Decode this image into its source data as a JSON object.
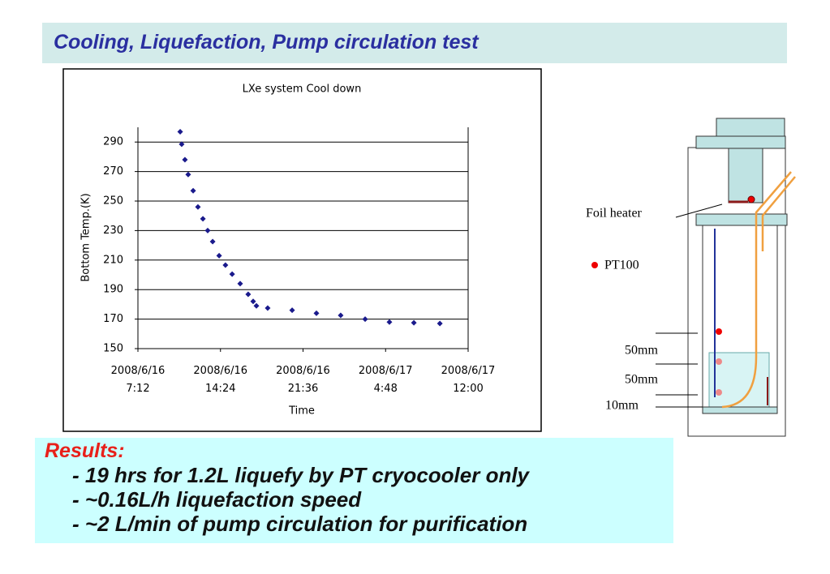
{
  "header": {
    "title": "Cooling, Liquefaction, Pump circulation test"
  },
  "chart_data": {
    "type": "scatter",
    "title": "LXe system Cool down",
    "xlabel": "Time",
    "ylabel": "Bottom Temp.(K)",
    "color": "#1a1a8c",
    "grid": true,
    "x": [
      "2008/6/16 10:53",
      "2008/6/16 11:01",
      "2008/6/16 11:18",
      "2008/6/16 11:35",
      "2008/6/16 12:01",
      "2008/6/16 12:26",
      "2008/6/16 12:52",
      "2008/6/16 13:17",
      "2008/6/16 13:43",
      "2008/6/16 14:17",
      "2008/6/16 14:50",
      "2008/6/16 15:25",
      "2008/6/16 16:07",
      "2008/6/16 16:49",
      "2008/6/16 17:15",
      "2008/6/16 17:32",
      "2008/6/16 18:31",
      "2008/6/16 20:39",
      "2008/6/16 22:46",
      "2008/6/17 0:53",
      "2008/6/17 3:01",
      "2008/6/17 5:08",
      "2008/6/17 7:16",
      "2008/6/17 9:32"
    ],
    "values": [
      297,
      288.5,
      278,
      268,
      257,
      246,
      238,
      230,
      222.5,
      213,
      206.6,
      200.5,
      194,
      186.8,
      182,
      179,
      177.5,
      176,
      174,
      172.5,
      170,
      168,
      167.5,
      167
    ],
    "xlim": [
      "2008/6/16 7:12",
      "2008/6/17 12:00"
    ],
    "xticks": [
      {
        "value": "2008/6/16 7:12",
        "label": "2008/6/16 7:12"
      },
      {
        "value": "2008/6/16 14:24",
        "label": "2008/6/16 14:24"
      },
      {
        "value": "2008/6/16 21:36",
        "label": "2008/6/16 21:36"
      },
      {
        "value": "2008/6/17 4:48",
        "label": "2008/6/17 4:48"
      },
      {
        "value": "2008/6/17 12:00",
        "label": "2008/6/17 12:00"
      }
    ],
    "ylim": [
      150,
      300
    ],
    "yticks": [
      150,
      170,
      190,
      210,
      230,
      250,
      270,
      290
    ]
  },
  "diagram": {
    "labels": [
      "Foil heater",
      "PT100",
      "50mm",
      "50mm",
      "10mm"
    ]
  },
  "results": {
    "heading": "Results:",
    "lines": [
      "- 19 hrs for 1.2L liquefy by PT cryocooler only",
      "- ~0.16L/h liquefaction speed",
      "- ~2 L/min of pump circulation for purification"
    ]
  }
}
